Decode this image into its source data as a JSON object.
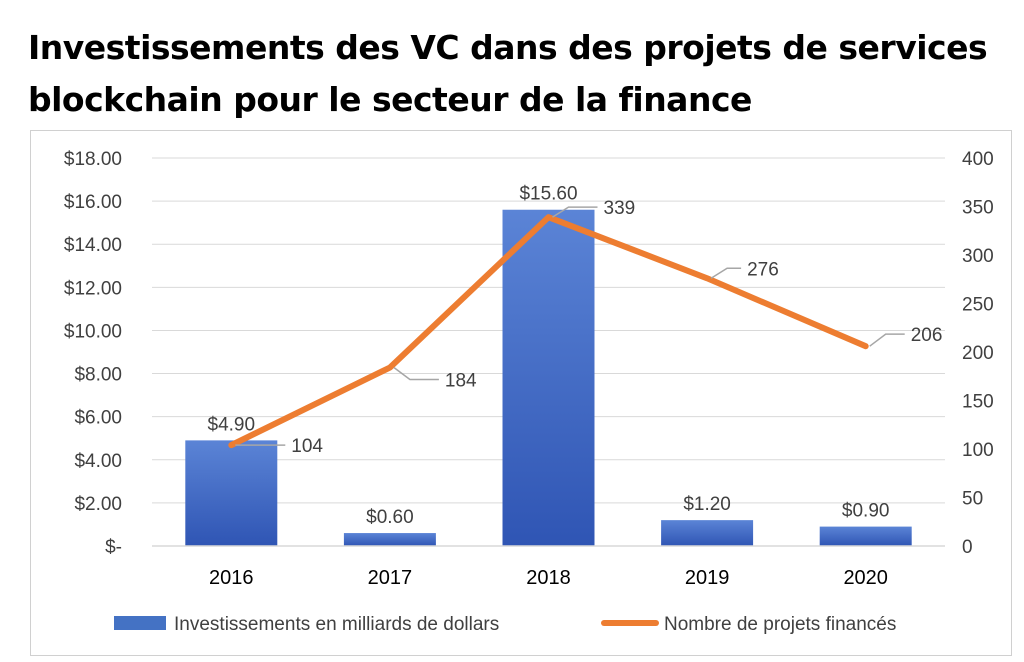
{
  "title_lines": [
    "Investissements des VC dans des projets de services",
    "blockchain pour le secteur de la finance"
  ],
  "chart_data": {
    "type": "bar+line",
    "title": "Investissements des VC dans des projets de services blockchain pour le secteur de la finance",
    "categories": [
      "2016",
      "2017",
      "2018",
      "2019",
      "2020"
    ],
    "series": [
      {
        "name": "Investissements en milliards de dollars",
        "type": "bar",
        "axis": "left",
        "color": "#4472c4",
        "values": [
          4.9,
          0.6,
          15.6,
          1.2,
          0.9
        ],
        "labels": [
          "$4.90",
          "$0.60",
          "$15.60",
          "$1.20",
          "$0.90"
        ]
      },
      {
        "name": "Nombre de projets financés",
        "type": "line",
        "axis": "right",
        "color": "#ed7d31",
        "values": [
          104,
          184,
          339,
          276,
          206
        ],
        "labels": [
          "104",
          "184",
          "339",
          "276",
          "206"
        ]
      }
    ],
    "left_axis": {
      "ylim": [
        0,
        18
      ],
      "ticks": [
        0,
        2,
        4,
        6,
        8,
        10,
        12,
        14,
        16,
        18
      ],
      "tick_labels": [
        "$-",
        "$2.00",
        "$4.00",
        "$6.00",
        "$8.00",
        "$10.00",
        "$12.00",
        "$14.00",
        "$16.00",
        "$18.00"
      ]
    },
    "right_axis": {
      "ylim": [
        0,
        400
      ],
      "ticks": [
        0,
        50,
        100,
        150,
        200,
        250,
        300,
        350,
        400
      ],
      "tick_labels": [
        "0",
        "50",
        "100",
        "150",
        "200",
        "250",
        "300",
        "350",
        "400"
      ]
    },
    "grid": true,
    "legend_position": "bottom"
  }
}
